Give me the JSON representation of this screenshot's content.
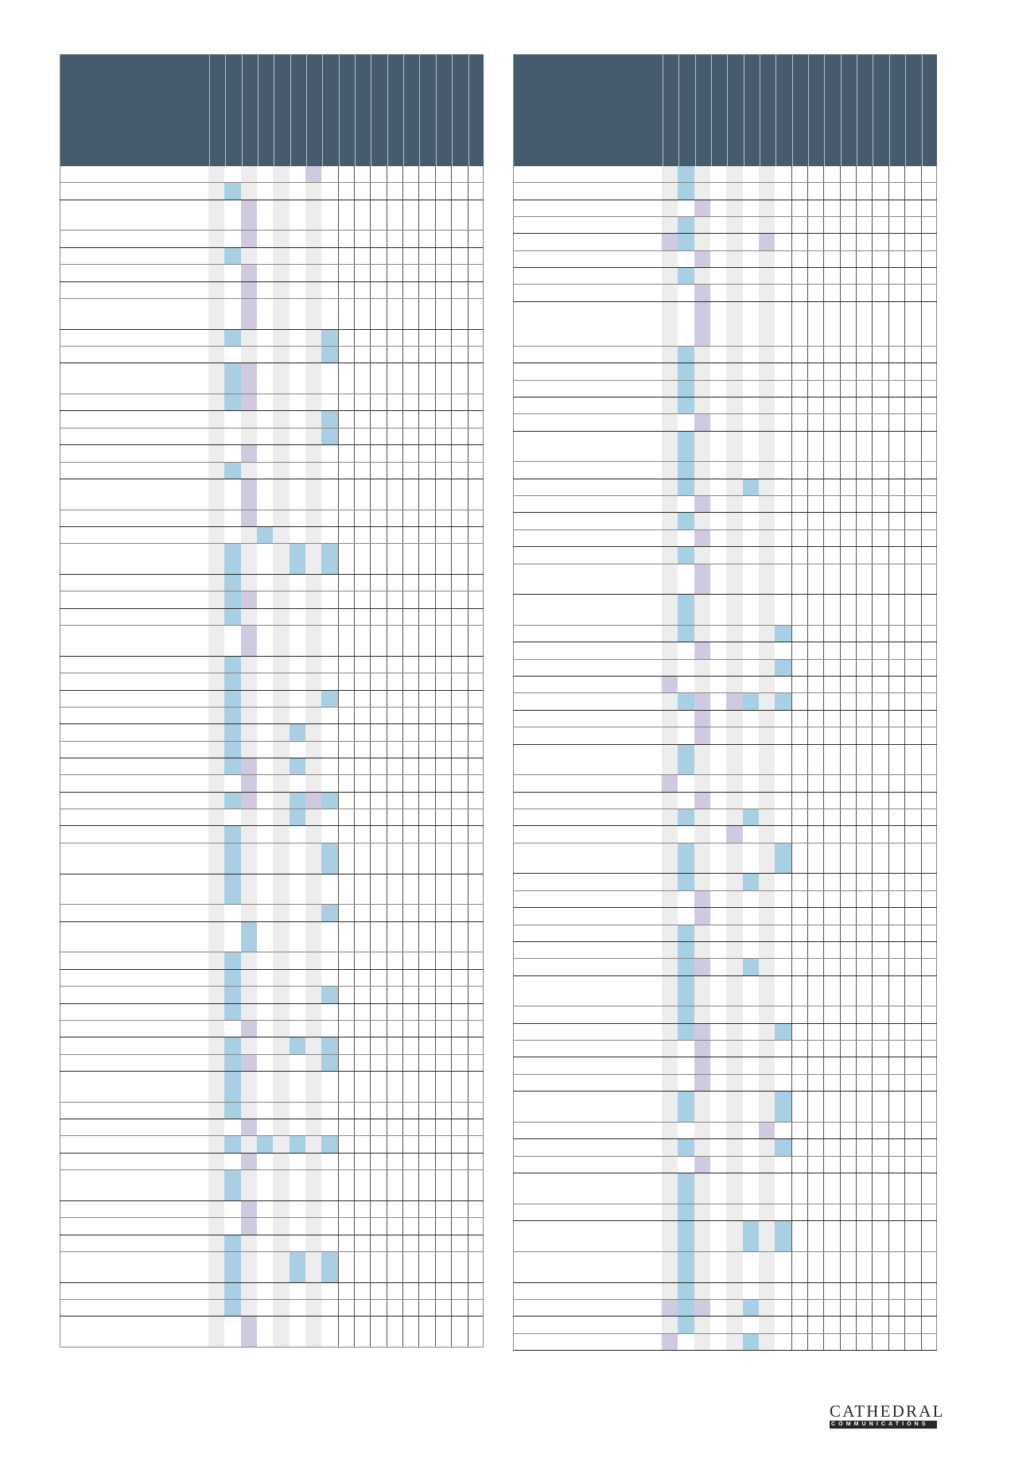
{
  "colors": {
    "header": "#465b6e",
    "blue_mark": "#a9cfe5",
    "purple_mark": "#cfcae0",
    "stripe": "#ededed"
  },
  "legend_codes": {
    "B": "blue",
    "P": "purple",
    ".": "none"
  },
  "tables": [
    {
      "columns": 17,
      "rows": [
        "......P.",
        ".B......",
        "..P.....",
        "..P.....",
        ".B......",
        "..P.....",
        "..P.....",
        "..P.....",
        ".B.....B",
        ".......B",
        ".BP.....",
        ".BP.....",
        ".......B",
        ".......B",
        "..P.....",
        ".B......",
        "..P.....",
        "..P.....",
        "...B....",
        ".B...B.B",
        ".B......",
        ".BP.....",
        ".B......",
        "..P.....",
        ".B......",
        ".B......",
        ".B.....B",
        ".B......",
        ".B...B..",
        ".B......",
        ".BP..B..",
        "..P.....",
        ".BP..BPB",
        ".....B..",
        ".B......",
        ".B.....B",
        ".B......",
        ".......B",
        "..B.....",
        ".B......",
        ".B......",
        ".B.....B",
        ".B......",
        "..P.....",
        ".B...B.B",
        ".BP....B",
        ".B......",
        ".B......",
        "..P.....",
        ".B.B.B.B",
        "..P.....",
        ".B......",
        "..P.....",
        "..P.....",
        ".B......",
        ".B...B.B",
        ".B......",
        ".B......",
        "..P....."
      ]
    },
    {
      "columns": 17,
      "rows": [
        ".B......",
        ".B......",
        "..P.....",
        ".B......",
        "PB....P.",
        "..P.....",
        ".B......",
        "..P.....",
        "..P.....",
        ".B......",
        ".B......",
        ".B......",
        ".B......",
        "..P.....",
        ".B......",
        ".B......",
        ".B...B..",
        "..P.....",
        ".B......",
        "..P.....",
        ".B......",
        "..P.....",
        ".B......",
        ".B.....B",
        "..P.....",
        ".......B",
        "P.......",
        ".BP.PB.B",
        "..P.....",
        "..P.....",
        ".B......",
        "P.......",
        "..P.....",
        ".B...B..",
        "....P...",
        ".B.....B",
        ".B...B..",
        "..P.....",
        "..P.....",
        ".B......",
        ".B......",
        ".BP..B..",
        ".B......",
        ".B......",
        ".BP....B",
        "..P.....",
        "..P.....",
        "..P.....",
        ".B.....B",
        "......P.",
        ".B.....B",
        "..P.....",
        ".B......",
        ".B......",
        ".B...B.B",
        ".B......",
        ".B......",
        "PBP..B..",
        ".B......",
        "P....B.."
      ]
    }
  ],
  "logo": {
    "name": "CATHEDRAL",
    "sub": "COMMUNICATIONS"
  }
}
